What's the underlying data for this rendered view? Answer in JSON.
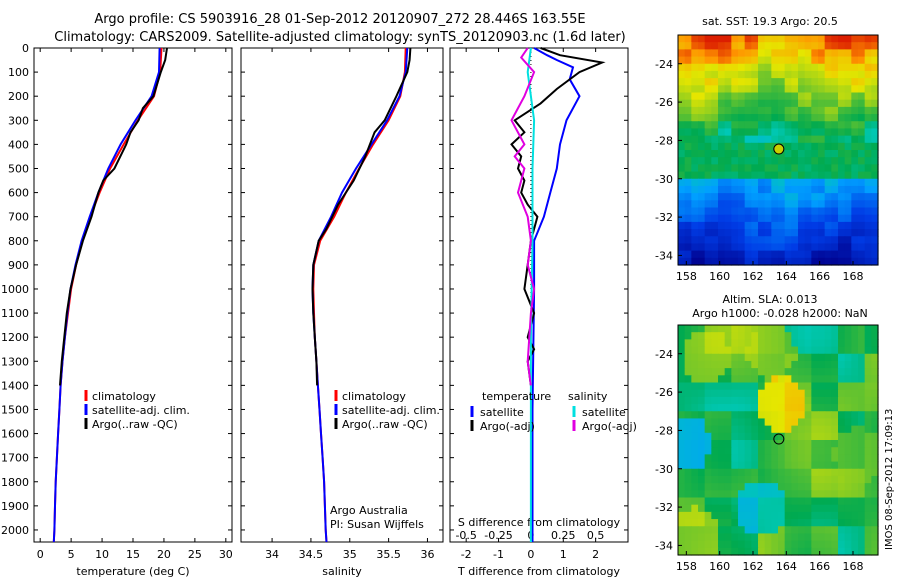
{
  "header": {
    "line1": "Argo profile: CS 5903916_28 01-Sep-2012 20120907_272 28.446S 163.55E",
    "line2": "Climatology: CARS2009. Satellite-adjusted climatology: synTS_20120903.nc (1.6d later)"
  },
  "side_text": "IMOS 08-Sep-2012 17:09:13",
  "colors": {
    "climatology": "#ff0000",
    "satellite": "#0000ff",
    "argo": "#000000",
    "sat_salinity": "#00e0e0",
    "argo_adj_salinity": "#e000e0"
  },
  "chart_data": [
    {
      "type": "line",
      "xlabel": "temperature (deg C)",
      "ylabel": "",
      "xlim": [
        -1,
        31
      ],
      "ylim": [
        2050,
        0
      ],
      "xticks": [
        "0",
        "5",
        "10",
        "15",
        "20",
        "25",
        "30"
      ],
      "yticks": [
        "0",
        "100",
        "200",
        "300",
        "400",
        "500",
        "600",
        "700",
        "800",
        "900",
        "1000",
        "1100",
        "1200",
        "1300",
        "1400",
        "1500",
        "1600",
        "1700",
        "1800",
        "1900",
        "2000"
      ],
      "legend": [
        "climatology",
        "satellite-adj. clim.",
        "Argo(..raw -QC)"
      ],
      "series": [
        {
          "name": "climatology",
          "color": "#ff0000",
          "points": [
            [
              19.6,
              0
            ],
            [
              19.4,
              100
            ],
            [
              18.4,
              200
            ],
            [
              15.8,
              300
            ],
            [
              13.5,
              400
            ],
            [
              11.3,
              500
            ],
            [
              9.6,
              600
            ],
            [
              8.1,
              700
            ],
            [
              6.8,
              800
            ],
            [
              5.8,
              900
            ],
            [
              5.0,
              1000
            ],
            [
              4.5,
              1100
            ],
            [
              4.0,
              1200
            ],
            [
              3.6,
              1300
            ],
            [
              3.3,
              1400
            ],
            [
              3.1,
              1500
            ],
            [
              2.9,
              1600
            ],
            [
              2.7,
              1700
            ],
            [
              2.5,
              1800
            ],
            [
              2.4,
              1900
            ],
            [
              2.3,
              2000
            ],
            [
              2.2,
              2050
            ]
          ]
        },
        {
          "name": "satellite-adj. clim.",
          "color": "#0000ff",
          "points": [
            [
              19.3,
              0
            ],
            [
              19.2,
              100
            ],
            [
              18.0,
              200
            ],
            [
              15.4,
              300
            ],
            [
              13.0,
              400
            ],
            [
              11.0,
              500
            ],
            [
              9.4,
              600
            ],
            [
              8.0,
              700
            ],
            [
              6.7,
              800
            ],
            [
              5.7,
              900
            ],
            [
              4.9,
              1000
            ],
            [
              4.4,
              1100
            ],
            [
              4.0,
              1200
            ],
            [
              3.6,
              1300
            ],
            [
              3.3,
              1400
            ],
            [
              3.1,
              1500
            ],
            [
              2.9,
              1600
            ],
            [
              2.7,
              1700
            ],
            [
              2.5,
              1800
            ],
            [
              2.4,
              1900
            ],
            [
              2.3,
              2000
            ],
            [
              2.2,
              2050
            ]
          ]
        },
        {
          "name": "Argo(..raw -QC)",
          "color": "#000000",
          "points": [
            [
              20.5,
              0
            ],
            [
              20.2,
              50
            ],
            [
              19.5,
              100
            ],
            [
              18.3,
              200
            ],
            [
              16.6,
              250
            ],
            [
              15.9,
              300
            ],
            [
              14.6,
              350
            ],
            [
              13.9,
              400
            ],
            [
              12.0,
              500
            ],
            [
              10.2,
              550
            ],
            [
              9.4,
              600
            ],
            [
              8.3,
              700
            ],
            [
              6.9,
              800
            ],
            [
              5.8,
              900
            ],
            [
              4.9,
              1000
            ],
            [
              4.3,
              1100
            ],
            [
              3.9,
              1200
            ],
            [
              3.5,
              1300
            ],
            [
              3.2,
              1400
            ]
          ]
        }
      ]
    },
    {
      "type": "line",
      "xlabel": "salinity",
      "ylabel": "",
      "xlim": [
        33.6,
        36.2
      ],
      "ylim": [
        2050,
        0
      ],
      "xticks": [
        "34",
        "34.5",
        "35",
        "35.5",
        "36"
      ],
      "legend": [
        "climatology",
        "satellite-adj. clim.",
        "Argo(..raw -QC)"
      ],
      "annotations": [
        "Argo Australia",
        "PI: Susan Wijffels"
      ],
      "series": [
        {
          "name": "climatology",
          "color": "#ff0000",
          "points": [
            [
              35.72,
              0
            ],
            [
              35.71,
              100
            ],
            [
              35.65,
              200
            ],
            [
              35.5,
              300
            ],
            [
              35.3,
              400
            ],
            [
              35.12,
              500
            ],
            [
              34.95,
              600
            ],
            [
              34.8,
              700
            ],
            [
              34.62,
              800
            ],
            [
              34.54,
              900
            ],
            [
              34.53,
              1000
            ],
            [
              34.54,
              1100
            ],
            [
              34.55,
              1200
            ],
            [
              34.57,
              1300
            ],
            [
              34.59,
              1400
            ],
            [
              34.61,
              1500
            ],
            [
              34.63,
              1600
            ],
            [
              34.65,
              1700
            ],
            [
              34.67,
              1800
            ],
            [
              34.68,
              1900
            ],
            [
              34.69,
              2000
            ],
            [
              34.7,
              2050
            ]
          ]
        },
        {
          "name": "satellite-adj. clim.",
          "color": "#0000ff",
          "points": [
            [
              35.74,
              0
            ],
            [
              35.72,
              100
            ],
            [
              35.64,
              200
            ],
            [
              35.48,
              300
            ],
            [
              35.28,
              400
            ],
            [
              35.08,
              500
            ],
            [
              34.9,
              600
            ],
            [
              34.76,
              700
            ],
            [
              34.6,
              800
            ],
            [
              34.53,
              900
            ],
            [
              34.52,
              1000
            ],
            [
              34.53,
              1100
            ],
            [
              34.55,
              1200
            ],
            [
              34.57,
              1300
            ],
            [
              34.59,
              1400
            ],
            [
              34.61,
              1500
            ],
            [
              34.63,
              1600
            ],
            [
              34.65,
              1700
            ],
            [
              34.67,
              1800
            ],
            [
              34.68,
              1900
            ],
            [
              34.69,
              2000
            ],
            [
              34.7,
              2050
            ]
          ]
        },
        {
          "name": "Argo(..raw -QC)",
          "color": "#000000",
          "points": [
            [
              35.78,
              0
            ],
            [
              35.77,
              50
            ],
            [
              35.74,
              100
            ],
            [
              35.6,
              200
            ],
            [
              35.45,
              300
            ],
            [
              35.32,
              350
            ],
            [
              35.2,
              450
            ],
            [
              35.05,
              550
            ],
            [
              34.85,
              650
            ],
            [
              34.7,
              750
            ],
            [
              34.6,
              800
            ],
            [
              34.53,
              900
            ],
            [
              34.52,
              1000
            ],
            [
              34.53,
              1100
            ],
            [
              34.55,
              1200
            ],
            [
              34.57,
              1300
            ],
            [
              34.58,
              1400
            ]
          ]
        }
      ]
    },
    {
      "type": "line",
      "xlabel": "T difference from climatology",
      "xlabel_top": "S difference from climatology",
      "xlim": [
        -2.5,
        3
      ],
      "ylim": [
        2050,
        0
      ],
      "xticks": [
        "-2",
        "-1",
        "0",
        "1",
        "2"
      ],
      "xticks_top": [
        "-0.5",
        "-0.25",
        "0",
        "0.25",
        "0.5"
      ],
      "legend_headers": [
        "temperature",
        "salinity"
      ],
      "legend": [
        "satellite",
        "Argo(-adj)",
        "satellite",
        "Argo(-adj)"
      ],
      "series": [
        {
          "name": "satellite",
          "color": "#0000ff",
          "points": [
            [
              0.1,
              0
            ],
            [
              0.5,
              30
            ],
            [
              0.8,
              50
            ],
            [
              1.3,
              80
            ],
            [
              1.2,
              130
            ],
            [
              1.5,
              200
            ],
            [
              1.1,
              300
            ],
            [
              0.9,
              400
            ],
            [
              0.8,
              500
            ],
            [
              0.6,
              600
            ],
            [
              0.4,
              700
            ],
            [
              0.1,
              800
            ],
            [
              0.1,
              1000
            ],
            [
              0.05,
              1500
            ],
            [
              0.05,
              2050
            ]
          ]
        },
        {
          "name": "Argo(-adj)",
          "color": "#000000",
          "points": [
            [
              0.3,
              0
            ],
            [
              0.9,
              30
            ],
            [
              2.2,
              60
            ],
            [
              1.5,
              100
            ],
            [
              0.8,
              170
            ],
            [
              0.3,
              230
            ],
            [
              -0.5,
              300
            ],
            [
              -0.2,
              350
            ],
            [
              -0.6,
              400
            ],
            [
              -0.3,
              450
            ],
            [
              -0.4,
              500
            ],
            [
              -0.2,
              550
            ],
            [
              -0.3,
              600
            ],
            [
              -0.1,
              650
            ],
            [
              0.2,
              700
            ],
            [
              0.0,
              800
            ],
            [
              -0.1,
              900
            ],
            [
              -0.2,
              1000
            ],
            [
              0.1,
              1100
            ],
            [
              -0.1,
              1200
            ],
            [
              0.1,
              1250
            ],
            [
              -0.1,
              1300
            ],
            [
              0.0,
              1400
            ]
          ]
        },
        {
          "name": "satellite",
          "color": "#00e0e0",
          "points": [
            [
              0.0,
              0
            ],
            [
              -0.1,
              100
            ],
            [
              0.1,
              300
            ],
            [
              0.05,
              500
            ],
            [
              0.05,
              800
            ],
            [
              0.0,
              1200
            ],
            [
              0.0,
              1600
            ],
            [
              0.0,
              2050
            ]
          ]
        },
        {
          "name": "Argo(-adj)",
          "color": "#e000e0",
          "points": [
            [
              -0.1,
              0
            ],
            [
              -0.3,
              40
            ],
            [
              0.1,
              100
            ],
            [
              -0.2,
              200
            ],
            [
              -0.6,
              300
            ],
            [
              -0.2,
              400
            ],
            [
              -0.5,
              450
            ],
            [
              -0.2,
              500
            ],
            [
              -0.4,
              600
            ],
            [
              -0.1,
              700
            ],
            [
              0.0,
              800
            ],
            [
              -0.1,
              900
            ],
            [
              0.1,
              1000
            ],
            [
              0.0,
              1100
            ],
            [
              -0.1,
              1300
            ],
            [
              0.0,
              1400
            ]
          ]
        }
      ]
    },
    {
      "type": "heatmap",
      "title": "sat. SST: 19.3  Argo: 20.5",
      "xlim": [
        157.5,
        169.5
      ],
      "ylim": [
        -34.5,
        -22.5
      ],
      "xticks": [
        "158",
        "160",
        "162",
        "164",
        "166",
        "168"
      ],
      "yticks": [
        "-24",
        "-26",
        "-28",
        "-30",
        "-32",
        "-34"
      ],
      "marker": {
        "lon": 163.55,
        "lat": -28.45
      }
    },
    {
      "type": "heatmap",
      "title": "Altim. SLA: 0.013",
      "subtitle": "Argo h1000: -0.028  h2000: NaN",
      "xlim": [
        157.5,
        169.5
      ],
      "ylim": [
        -34.5,
        -22.5
      ],
      "xticks": [
        "158",
        "160",
        "162",
        "164",
        "166",
        "168"
      ],
      "yticks": [
        "-24",
        "-26",
        "-28",
        "-30",
        "-32",
        "-34"
      ],
      "marker": {
        "lon": 163.55,
        "lat": -28.45
      }
    }
  ]
}
